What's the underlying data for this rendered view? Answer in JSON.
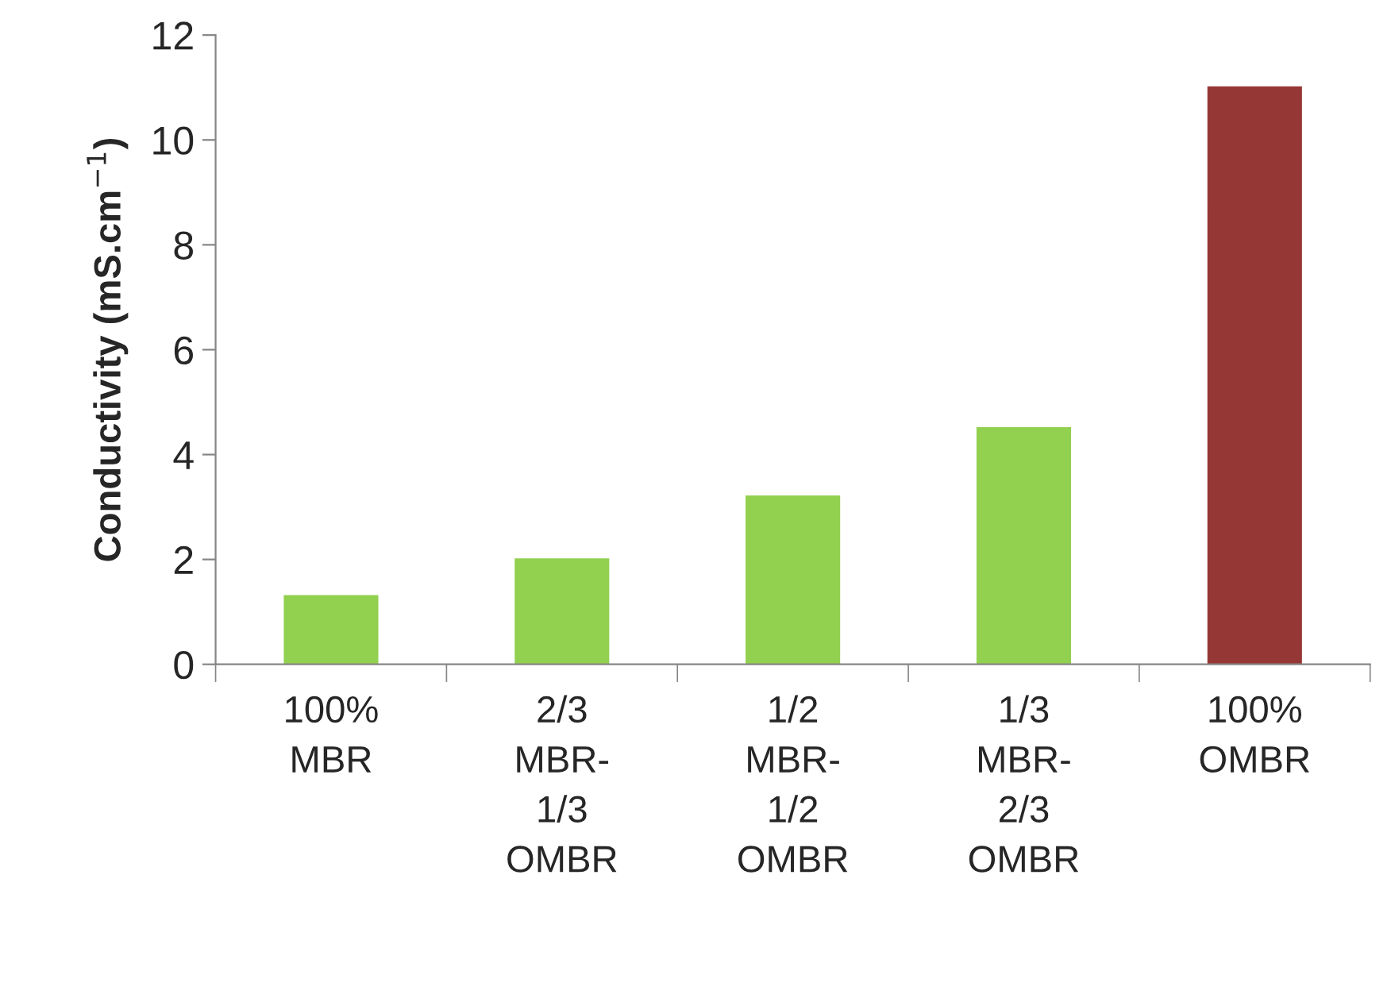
{
  "chart_data": {
    "type": "bar",
    "categories": [
      "100%\nMBR",
      "2/3\nMBR-\n1/3\nOMBR",
      "1/2\nMBR-\n1/2\nOMBR",
      "1/3\nMBR-\n2/3\nOMBR",
      "100%\nOMBR"
    ],
    "values": [
      1.3,
      2.0,
      3.2,
      4.5,
      11.0
    ],
    "colors": [
      "#92d050",
      "#92d050",
      "#92d050",
      "#92d050",
      "#953735"
    ],
    "ylabel": "Conductivity (mS.cm$^{−1}$)",
    "ylim": [
      0,
      12
    ],
    "yticks": [
      0,
      2,
      4,
      6,
      8,
      10,
      12
    ],
    "grid": false,
    "legend": false
  }
}
